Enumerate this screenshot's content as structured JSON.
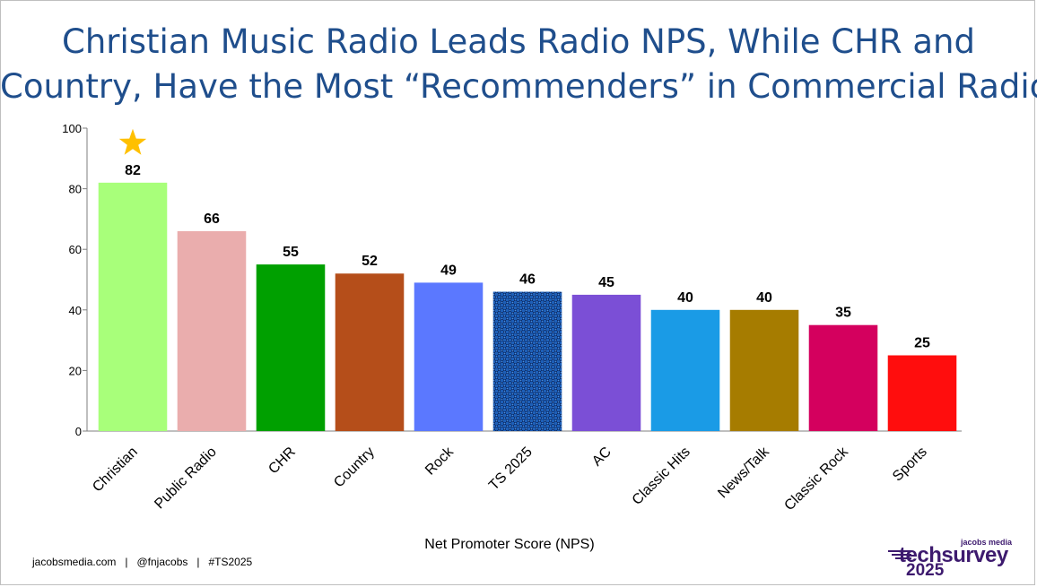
{
  "title_lines": [
    "Christian Music Radio Leads Radio NPS, While CHR and",
    "Country, Have the Most “Recommenders” in Commercial Radio"
  ],
  "chart_data": {
    "type": "bar",
    "categories": [
      "Christian",
      "Public Radio",
      "CHR",
      "Country",
      "Rock",
      "TS 2025",
      "AC",
      "Classic Hits",
      "News/Talk",
      "Classic Rock",
      "Sports"
    ],
    "values": [
      82,
      66,
      55,
      52,
      49,
      46,
      45,
      40,
      40,
      35,
      25
    ],
    "colors": [
      "#a8ff7a",
      "#eaadad",
      "#00a000",
      "#b54e1a",
      "#5b78ff",
      "#1d5fb8",
      "#7b4fd6",
      "#1a9be6",
      "#a67c00",
      "#d4005e",
      "#ff0d0d"
    ],
    "highlight": {
      "category": "TS 2025",
      "pattern": "checkered"
    },
    "star_on": "Christian",
    "xlabel": "Net Promoter Score (NPS)",
    "ylabel": "",
    "ylim": [
      0,
      100
    ],
    "yticks": [
      0,
      20,
      40,
      60,
      80,
      100
    ],
    "grid": false,
    "data_labels": true
  },
  "footer": "jacobsmedia.com   |   @fnjacobs   |   #TS2025",
  "logo": {
    "small": "jacobs media",
    "main": "techsurvey",
    "year": "2025",
    "accent": "#3d1a6e"
  }
}
